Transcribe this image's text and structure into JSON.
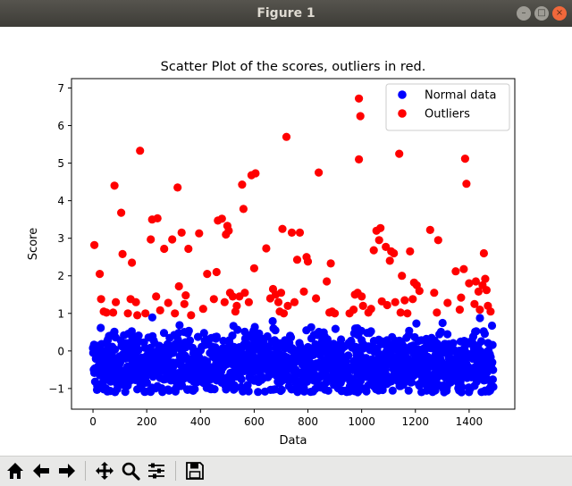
{
  "window": {
    "title": "Figure 1"
  },
  "toolbar": {
    "buttons": [
      {
        "name": "home-button",
        "icon": "home-icon"
      },
      {
        "name": "back-button",
        "icon": "arrow-left-icon"
      },
      {
        "name": "forward-button",
        "icon": "arrow-right-icon"
      },
      {
        "name": "pan-button",
        "icon": "move-icon"
      },
      {
        "name": "zoom-button",
        "icon": "magnifier-icon"
      },
      {
        "name": "configure-subplots-button",
        "icon": "sliders-icon"
      },
      {
        "name": "save-button",
        "icon": "floppy-disk-icon"
      }
    ]
  },
  "chart_data": {
    "type": "scatter",
    "title": "Scatter Plot of the scores, outliers in red.",
    "xlabel": "Data",
    "ylabel": "Score",
    "xlim": [
      -80,
      1570
    ],
    "ylim": [
      -1.55,
      7.25
    ],
    "xticks": [
      0,
      200,
      400,
      600,
      800,
      1000,
      1200,
      1400
    ],
    "yticks": [
      -1,
      0,
      1,
      2,
      3,
      4,
      5,
      6,
      7
    ],
    "grid": false,
    "legend": {
      "position": "top-right"
    },
    "series": [
      {
        "name": "Normal data",
        "color": "#0000ff",
        "note_points": "normal data points are densely packed between about -1.1 and 0.95 across x 0-1490",
        "x_range": [
          0,
          1490
        ],
        "y_range": [
          -1.1,
          0.95
        ],
        "count": 1500
      },
      {
        "name": "Outliers",
        "color": "#ff0000",
        "points": [
          [
            5,
            2.82
          ],
          [
            25,
            2.05
          ],
          [
            30,
            1.38
          ],
          [
            40,
            1.05
          ],
          [
            50,
            1.02
          ],
          [
            75,
            1.02
          ],
          [
            80,
            4.4
          ],
          [
            85,
            1.3
          ],
          [
            105,
            3.68
          ],
          [
            110,
            2.58
          ],
          [
            130,
            1.0
          ],
          [
            140,
            1.38
          ],
          [
            145,
            2.35
          ],
          [
            160,
            1.3
          ],
          [
            165,
            0.95
          ],
          [
            175,
            5.33
          ],
          [
            195,
            1.0
          ],
          [
            215,
            2.97
          ],
          [
            220,
            3.5
          ],
          [
            235,
            1.45
          ],
          [
            240,
            3.53
          ],
          [
            250,
            1.08
          ],
          [
            265,
            2.72
          ],
          [
            280,
            1.28
          ],
          [
            295,
            2.97
          ],
          [
            305,
            1.0
          ],
          [
            315,
            4.35
          ],
          [
            320,
            1.72
          ],
          [
            330,
            3.15
          ],
          [
            340,
            1.25
          ],
          [
            345,
            1.48
          ],
          [
            355,
            2.72
          ],
          [
            365,
            0.95
          ],
          [
            395,
            3.13
          ],
          [
            410,
            1.12
          ],
          [
            425,
            2.05
          ],
          [
            450,
            1.38
          ],
          [
            460,
            2.1
          ],
          [
            465,
            3.47
          ],
          [
            480,
            3.52
          ],
          [
            490,
            1.3
          ],
          [
            495,
            3.1
          ],
          [
            500,
            3.33
          ],
          [
            505,
            3.2
          ],
          [
            510,
            1.55
          ],
          [
            520,
            1.45
          ],
          [
            530,
            1.05
          ],
          [
            535,
            1.2
          ],
          [
            545,
            1.45
          ],
          [
            555,
            4.43
          ],
          [
            560,
            3.78
          ],
          [
            565,
            1.55
          ],
          [
            580,
            1.3
          ],
          [
            590,
            4.68
          ],
          [
            600,
            2.2
          ],
          [
            605,
            4.73
          ],
          [
            645,
            2.73
          ],
          [
            660,
            1.4
          ],
          [
            670,
            1.65
          ],
          [
            680,
            1.5
          ],
          [
            690,
            1.3
          ],
          [
            695,
            1.05
          ],
          [
            700,
            1.55
          ],
          [
            705,
            3.25
          ],
          [
            710,
            1.0
          ],
          [
            720,
            5.7
          ],
          [
            725,
            1.2
          ],
          [
            740,
            3.15
          ],
          [
            750,
            1.3
          ],
          [
            760,
            2.43
          ],
          [
            770,
            3.15
          ],
          [
            785,
            1.58
          ],
          [
            795,
            2.5
          ],
          [
            800,
            2.38
          ],
          [
            830,
            1.4
          ],
          [
            840,
            4.75
          ],
          [
            870,
            1.85
          ],
          [
            880,
            1.02
          ],
          [
            885,
            2.33
          ],
          [
            890,
            1.05
          ],
          [
            900,
            1.0
          ],
          [
            955,
            1.0
          ],
          [
            970,
            1.1
          ],
          [
            975,
            1.5
          ],
          [
            985,
            1.55
          ],
          [
            990,
            6.72
          ],
          [
            990,
            5.1
          ],
          [
            995,
            6.25
          ],
          [
            1000,
            1.45
          ],
          [
            1005,
            1.2
          ],
          [
            1025,
            1.02
          ],
          [
            1035,
            1.12
          ],
          [
            1045,
            2.68
          ],
          [
            1055,
            3.2
          ],
          [
            1065,
            2.95
          ],
          [
            1070,
            3.27
          ],
          [
            1075,
            1.32
          ],
          [
            1090,
            2.77
          ],
          [
            1095,
            1.22
          ],
          [
            1105,
            2.4
          ],
          [
            1110,
            2.65
          ],
          [
            1120,
            2.6
          ],
          [
            1125,
            1.3
          ],
          [
            1140,
            5.25
          ],
          [
            1145,
            1.02
          ],
          [
            1150,
            2.0
          ],
          [
            1160,
            1.35
          ],
          [
            1170,
            1.0
          ],
          [
            1180,
            2.65
          ],
          [
            1190,
            1.38
          ],
          [
            1195,
            1.82
          ],
          [
            1205,
            1.75
          ],
          [
            1215,
            1.6
          ],
          [
            1255,
            3.22
          ],
          [
            1270,
            1.55
          ],
          [
            1280,
            1.02
          ],
          [
            1285,
            2.95
          ],
          [
            1320,
            1.28
          ],
          [
            1350,
            2.12
          ],
          [
            1365,
            1.1
          ],
          [
            1370,
            1.42
          ],
          [
            1380,
            2.18
          ],
          [
            1385,
            5.12
          ],
          [
            1390,
            4.45
          ],
          [
            1400,
            1.8
          ],
          [
            1420,
            1.25
          ],
          [
            1425,
            1.85
          ],
          [
            1435,
            1.58
          ],
          [
            1440,
            1.1
          ],
          [
            1450,
            1.75
          ],
          [
            1455,
            2.6
          ],
          [
            1460,
            1.92
          ],
          [
            1465,
            1.62
          ],
          [
            1470,
            1.2
          ],
          [
            1480,
            1.05
          ]
        ]
      }
    ]
  }
}
